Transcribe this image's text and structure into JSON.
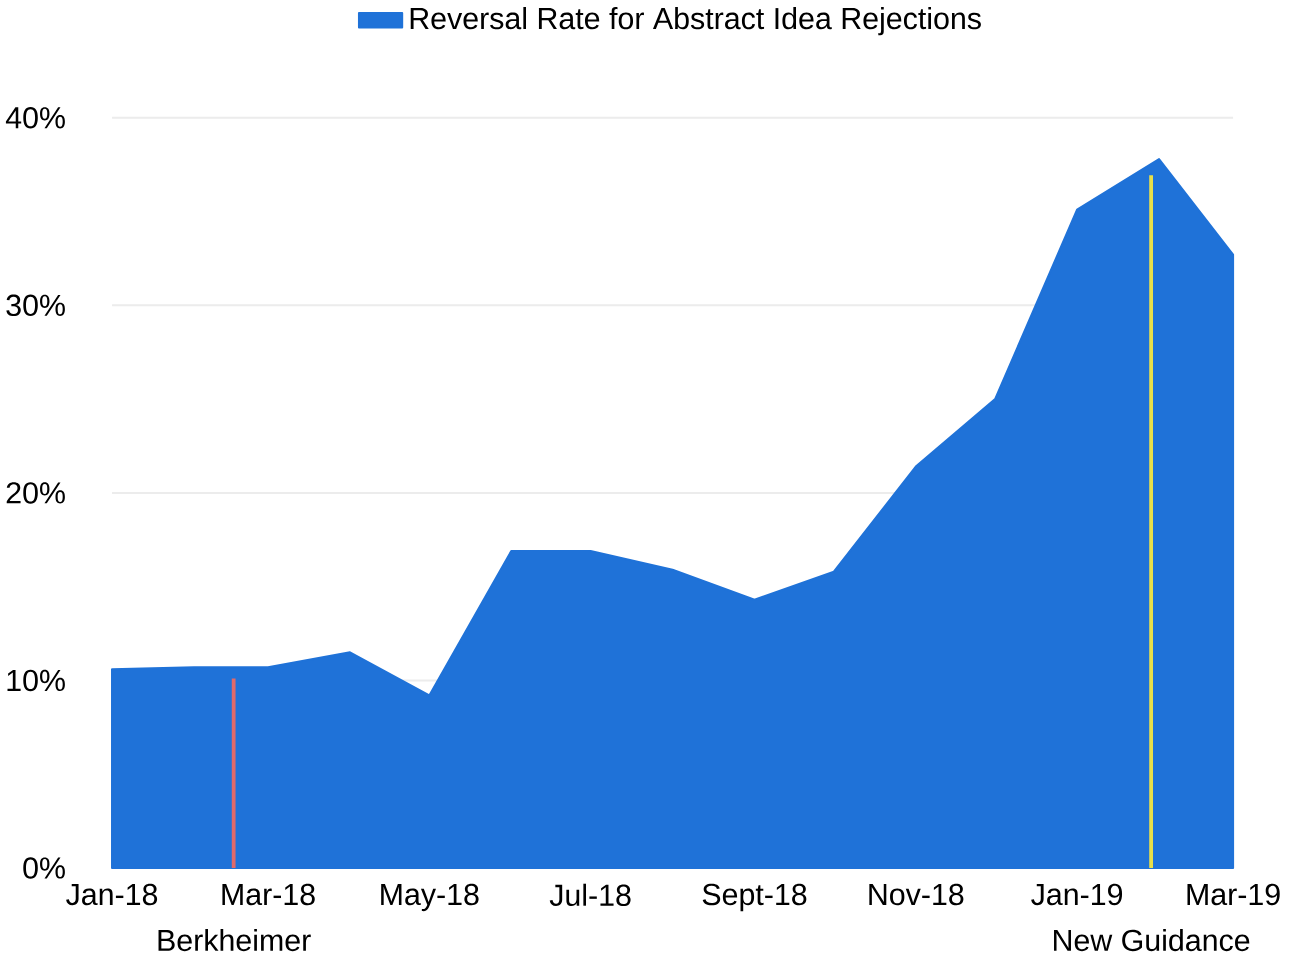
{
  "chart_data": {
    "type": "area",
    "legend": "top",
    "grid": "y",
    "marker": "none",
    "x": [
      "2018-01",
      "2018-02",
      "2018-03",
      "2018-04",
      "2018-05",
      "2018-06",
      "2018-07",
      "2018-08",
      "2018-09",
      "2018-10",
      "2018-11",
      "2018-12",
      "2019-01",
      "2019-02",
      "2019-03"
    ],
    "series": [
      {
        "name": "Reversal Rate for Abstract Idea Rejections",
        "color": "#1f72d8",
        "values": [
          10.6,
          10.7,
          10.7,
          11.5,
          9.2,
          16.9,
          16.9,
          15.9,
          14.3,
          15.8,
          21.4,
          25.0,
          35.1,
          37.8,
          32.7
        ]
      }
    ],
    "xlim": [
      "2018-01",
      "2019-03"
    ],
    "xticks": [
      {
        "value": "2018-01",
        "label": "Jan-18"
      },
      {
        "value": "2018-03",
        "label": "Mar-18"
      },
      {
        "value": "2018-05",
        "label": "May-18"
      },
      {
        "value": "2018-07",
        "label": "Jul-18"
      },
      {
        "value": "2018-09",
        "label": "Sept-18"
      },
      {
        "value": "2018-11",
        "label": "Nov-18"
      },
      {
        "value": "2019-01",
        "label": "Jan-19"
      },
      {
        "value": "2019-03",
        "label": "Mar-19"
      }
    ],
    "ylim": [
      0,
      40
    ],
    "yticks": [
      {
        "value": 0,
        "label": "0%"
      },
      {
        "value": 10,
        "label": "10%"
      },
      {
        "value": 20,
        "label": "20%"
      },
      {
        "value": 30,
        "label": "30%"
      },
      {
        "value": 40,
        "label": "40%"
      }
    ],
    "ref_lines": [
      {
        "axis": "x",
        "value": "2018-02-16",
        "label": "Berkheimer",
        "color": "#e06a6a"
      },
      {
        "axis": "x",
        "value": "2019-01-29",
        "label": "New Guidance",
        "color": "#e8e04a"
      }
    ]
  }
}
